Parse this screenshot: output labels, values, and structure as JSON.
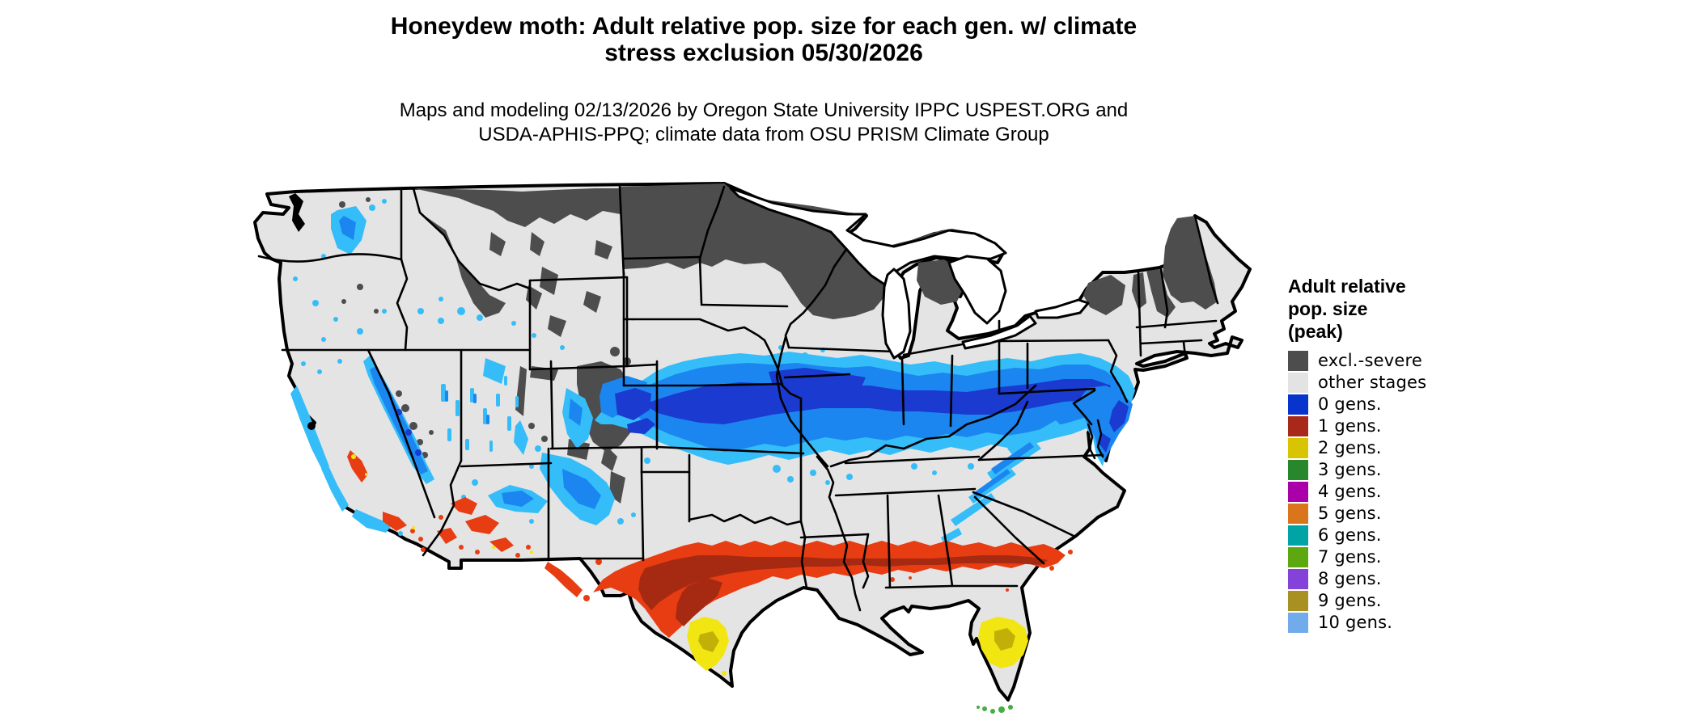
{
  "figure": {
    "title_line1": "Honeydew moth: Adult relative pop. size for each gen. w/ climate",
    "title_line2": "stress exclusion 05/30/2026",
    "subtitle_line1": "Maps and modeling 02/13/2026 by Oregon State University IPPC USPEST.ORG and",
    "subtitle_line2": "USDA-APHIS-PPQ; climate data from OSU PRISM Climate Group"
  },
  "legend": {
    "title_lines": [
      "Adult relative",
      "pop. size",
      "(peak)"
    ],
    "items": [
      {
        "label": "excl.-severe",
        "color": "#4d4d4d"
      },
      {
        "label": "other stages",
        "color": "#e3e3e3"
      },
      {
        "label": "0 gens.",
        "color": "#0634cc"
      },
      {
        "label": "1 gens.",
        "color": "#a8291a"
      },
      {
        "label": "2 gens.",
        "color": "#d9c402"
      },
      {
        "label": "3 gens.",
        "color": "#28872c"
      },
      {
        "label": "4 gens.",
        "color": "#aa00aa"
      },
      {
        "label": "5 gens.",
        "color": "#d9761c"
      },
      {
        "label": "6 gens.",
        "color": "#00a4a4"
      },
      {
        "label": "7 gens.",
        "color": "#5ca80e"
      },
      {
        "label": "8 gens.",
        "color": "#8442d8"
      },
      {
        "label": "9 gens.",
        "color": "#a89122"
      },
      {
        "label": "10 gens.",
        "color": "#72abec"
      }
    ]
  },
  "map": {
    "region": "Contiguous United States",
    "projection_style": "Albers-like raster pest risk map with state borders",
    "palette": {
      "fill-excl": "#4d4d4d",
      "fill-other": "#e4e4e4",
      "fill-blue-light": "#35bdf9",
      "fill-blue-mid": "#1b86f0",
      "fill-blue-dark": "#1a3ad0",
      "fill-red-bright": "#e83c12",
      "fill-red-dark": "#a62a12",
      "fill-yellow": "#f2e612",
      "fill-yellow-dark": "#c2b008",
      "fill-green": "#44ad44",
      "border": "#000000",
      "water": "#ffffff"
    },
    "regions_summary": [
      {
        "class": "excl.-severe",
        "where": "Northern tier: North Dakota, Minnesota, Wisconsin, upper Michigan, northern Rockies (MT/ID/WY), Colorado Rockies, high Sierra, northern New England and Adirondacks"
      },
      {
        "class": "0 gens.",
        "where": "Broad blue band from eastern Colorado across Nebraska/Kansas, Iowa/Missouri, Illinois/Indiana/Ohio to Pennsylvania, New Jersey, Delmarva and the central Appalachians; also mountain valleys of the West"
      },
      {
        "class": "1 gens.",
        "where": "Red band across west/central Texas, southern Arkansas/Louisiana border, Mississippi, Alabama, Georgia to coastal South Carolina; scattered in southern Arizona/Nevada/California"
      },
      {
        "class": "2 gens.",
        "where": "Yellow patches in south Texas and central Florida; tiny spots in the desert Southwest"
      },
      {
        "class": "3 gens.",
        "where": "Small green specks at the Florida Keys"
      },
      {
        "class": "other stages",
        "where": "Remaining light-gray areas of the lower 48 states"
      }
    ]
  }
}
